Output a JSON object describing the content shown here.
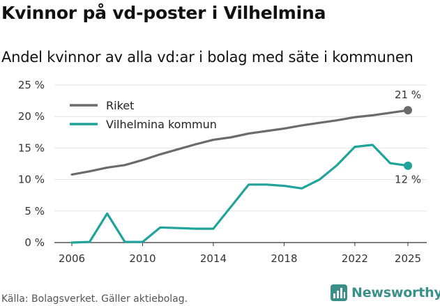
{
  "title": "Kvinnor på vd-poster i Vilhelmina",
  "subtitle": "Andel kvinnor av alla vd:ar i bolag med säte i kommunen",
  "source": "Källa: Bolagsverket. Gäller aktiebolag.",
  "brand": {
    "name": "Newsworthy",
    "icon": "newsworthy-logo-icon",
    "color": "#3a8f88"
  },
  "chart_data": {
    "type": "line",
    "title": "Kvinnor på vd-poster i Vilhelmina",
    "xlabel": "",
    "ylabel": "",
    "xlim": [
      2006,
      2025
    ],
    "ylim": [
      0,
      25
    ],
    "grid": true,
    "legend": "top-left",
    "x_ticks": [
      2006,
      2010,
      2014,
      2018,
      2022,
      2025
    ],
    "x_tick_labels": [
      "2006",
      "2010",
      "2014",
      "2018",
      "2022",
      "2025"
    ],
    "y_ticks": [
      0,
      5,
      10,
      15,
      20,
      25
    ],
    "y_tick_labels": [
      "0 %",
      "5 %",
      "10 %",
      "15 %",
      "20 %",
      "25 %"
    ],
    "x": [
      2006,
      2007,
      2008,
      2009,
      2010,
      2011,
      2012,
      2013,
      2014,
      2015,
      2016,
      2017,
      2018,
      2019,
      2020,
      2021,
      2022,
      2023,
      2024,
      2025
    ],
    "series": [
      {
        "name": "Riket",
        "color": "#6b6b6b",
        "values": [
          10.8,
          11.3,
          11.9,
          12.3,
          13.1,
          14.0,
          14.8,
          15.6,
          16.3,
          16.7,
          17.3,
          17.7,
          18.1,
          18.6,
          19.0,
          19.4,
          19.9,
          20.2,
          20.6,
          21.0
        ],
        "end_label": "21 %"
      },
      {
        "name": "Vilhelmina kommun",
        "color": "#1fa39a",
        "values": [
          0.0,
          0.1,
          4.6,
          0.1,
          0.1,
          2.4,
          2.3,
          2.2,
          2.2,
          5.7,
          9.2,
          9.2,
          9.0,
          8.6,
          10.0,
          12.3,
          15.2,
          15.5,
          12.6,
          12.2
        ],
        "end_label": "12 %"
      }
    ]
  }
}
